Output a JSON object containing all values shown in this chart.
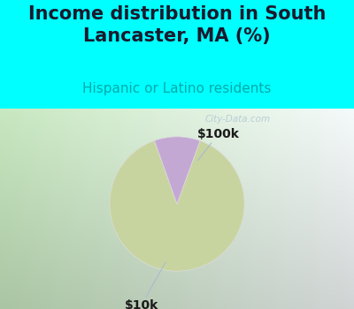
{
  "title": "Income distribution in South\nLancaster, MA (%)",
  "subtitle": "Hispanic or Latino residents",
  "title_color": "#1a1a2e",
  "subtitle_color": "#00aaaa",
  "background_cyan": "#00ffff",
  "slices": [
    89.0,
    11.0
  ],
  "slice_colors": [
    "#c8d4a0",
    "#c4a8d4"
  ],
  "slice_labels": [
    "$10k",
    "$100k"
  ],
  "label_color": "#1a1a1a",
  "watermark": "City-Data.com",
  "watermark_color": "#b0c8d4",
  "title_fontsize": 15,
  "subtitle_fontsize": 11,
  "label_fontsize": 10,
  "startangle": 70,
  "chart_bg_left": "#c8e8c0",
  "chart_bg_right": "#e8f8f8"
}
